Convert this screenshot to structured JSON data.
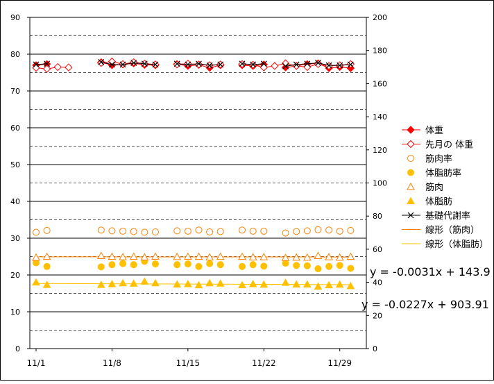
{
  "chart_data": {
    "type": "line",
    "title": "",
    "xlabel": "",
    "ylabel": "",
    "y_left_range": [
      0,
      90
    ],
    "y_left_ticks": [
      0,
      10,
      20,
      30,
      40,
      50,
      60,
      70,
      80,
      90
    ],
    "y_right_range": [
      0,
      200
    ],
    "y_right_ticks": [
      0,
      20,
      40,
      60,
      80,
      100,
      120,
      140,
      160,
      180,
      200
    ],
    "x_range": [
      1,
      31
    ],
    "x_tick_labels": [
      {
        "day": 1,
        "label": "11/1"
      },
      {
        "day": 8,
        "label": "11/8"
      },
      {
        "day": 15,
        "label": "11/15"
      },
      {
        "day": 22,
        "label": "11/22"
      },
      {
        "day": 29,
        "label": "11/29"
      }
    ],
    "grid": "horizontal (solid at multiples of 10, dashed at multiples of 5)",
    "legend_position": "right",
    "series": [
      {
        "name": "体重",
        "axis": "left",
        "color": "#ff0000",
        "marker": "diamond-filled",
        "x": [
          1,
          2,
          7,
          8,
          9,
          10,
          11,
          12,
          14,
          15,
          16,
          17,
          18,
          20,
          21,
          22,
          24,
          25,
          26,
          27,
          28,
          29,
          30
        ],
        "y": [
          77.0,
          77.3,
          77.8,
          77.0,
          77.2,
          77.5,
          77.1,
          77.0,
          77.3,
          76.8,
          77.1,
          76.3,
          77.0,
          77.0,
          76.8,
          77.2,
          76.4,
          76.8,
          77.3,
          77.5,
          76.2,
          76.5,
          76.2
        ]
      },
      {
        "name": "先月の 体重",
        "axis": "left",
        "color": "#ff0000",
        "marker": "diamond-open",
        "x": [
          1,
          2,
          3,
          4,
          7,
          8,
          9,
          10,
          11,
          12,
          14,
          15,
          16,
          17,
          18,
          20,
          21,
          22,
          23,
          24,
          25,
          26,
          27,
          28,
          29,
          30
        ],
        "y": [
          76.3,
          76.0,
          76.5,
          76.4,
          77.6,
          78.0,
          77.3,
          77.8,
          77.4,
          77.2,
          77.2,
          77.4,
          77.2,
          77.0,
          77.2,
          77.3,
          77.1,
          76.4,
          76.8,
          77.5,
          76.8,
          76.5,
          77.3,
          76.8,
          77.0,
          77.3
        ]
      },
      {
        "name": "筋肉率",
        "axis": "left",
        "color": "#ff8000",
        "marker": "circle-open",
        "x": [
          1,
          2,
          7,
          8,
          9,
          10,
          11,
          12,
          14,
          15,
          16,
          17,
          18,
          20,
          21,
          22,
          24,
          25,
          26,
          27,
          28,
          29,
          30
        ],
        "y": [
          31.6,
          32.1,
          32.2,
          32.0,
          31.9,
          31.8,
          31.6,
          31.7,
          32.0,
          31.9,
          32.2,
          31.7,
          31.8,
          32.2,
          31.9,
          31.9,
          31.4,
          31.8,
          32.0,
          32.3,
          32.2,
          31.9,
          32.1
        ]
      },
      {
        "name": "体脂肪率",
        "axis": "left",
        "color": "#ffc000",
        "marker": "circle-filled",
        "x": [
          1,
          2,
          7,
          8,
          9,
          10,
          11,
          12,
          14,
          15,
          16,
          17,
          18,
          20,
          21,
          22,
          24,
          25,
          26,
          27,
          28,
          29,
          30
        ],
        "y": [
          23.3,
          22.3,
          22.2,
          22.8,
          23.1,
          22.8,
          23.7,
          23.0,
          22.8,
          23.0,
          22.3,
          23.1,
          22.8,
          22.3,
          22.8,
          22.4,
          23.2,
          22.6,
          22.5,
          21.7,
          22.3,
          22.6,
          21.8
        ]
      },
      {
        "name": "筋肉",
        "axis": "right",
        "color": "#ff8000",
        "marker": "triangle-open",
        "x": [
          1,
          2,
          7,
          8,
          9,
          10,
          11,
          12,
          14,
          15,
          16,
          17,
          18,
          20,
          21,
          22,
          24,
          25,
          26,
          27,
          28,
          29,
          30
        ],
        "y": [
          55.0,
          55.5,
          56.0,
          55.5,
          55.3,
          55.5,
          55.2,
          55.6,
          55.4,
          55.5,
          55.5,
          55.2,
          55.5,
          55.5,
          55.2,
          55.3,
          54.8,
          55.0,
          55.0,
          56.0,
          55.3,
          55.0,
          55.5
        ]
      },
      {
        "name": "体脂肪",
        "axis": "right",
        "color": "#ffc000",
        "marker": "triangle-filled",
        "x": [
          1,
          2,
          7,
          8,
          9,
          10,
          11,
          12,
          14,
          15,
          16,
          17,
          18,
          20,
          21,
          22,
          24,
          25,
          26,
          27,
          28,
          29,
          30
        ],
        "y": [
          40.0,
          38.5,
          38.5,
          39.0,
          39.5,
          39.3,
          40.5,
          39.5,
          38.8,
          39.0,
          38.3,
          39.5,
          39.3,
          38.3,
          39.0,
          38.7,
          39.8,
          38.8,
          38.8,
          37.5,
          38.3,
          38.7,
          37.8
        ]
      },
      {
        "name": "基礎代謝率",
        "axis": "right",
        "color": "#000000",
        "marker": "x",
        "x": [
          1,
          2,
          7,
          8,
          9,
          10,
          11,
          12,
          14,
          15,
          16,
          17,
          18,
          20,
          21,
          22,
          24,
          25,
          26,
          27,
          28,
          29,
          30
        ],
        "y": [
          171.5,
          172.0,
          173.0,
          171.5,
          171.5,
          172.5,
          172.0,
          171.5,
          172.0,
          171.5,
          172.0,
          171.0,
          171.5,
          172.0,
          171.5,
          172.0,
          170.5,
          171.5,
          172.0,
          172.5,
          171.0,
          171.0,
          171.5
        ]
      }
    ],
    "trendlines": [
      {
        "name": "線形（筋肉）",
        "axis": "right",
        "color": "#ff8000",
        "equation": "y = -0.0031x + 143.9",
        "y_start": 55.4,
        "y_end": 55.3
      },
      {
        "name": "線形（体脂肪）",
        "axis": "right",
        "color": "#ffc000",
        "equation": "y = -0.0227x + 903.91",
        "y_start": 39.3,
        "y_end": 38.6
      }
    ]
  }
}
